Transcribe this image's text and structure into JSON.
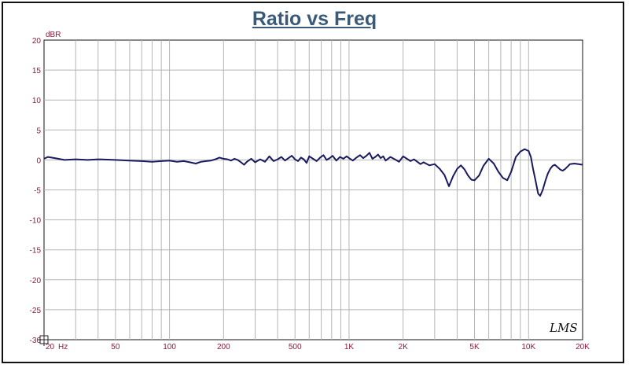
{
  "chart_data": {
    "type": "line",
    "title": "Ratio vs Freq",
    "ylabel": "dBR",
    "x_unit": "Hz",
    "x_scale": "log",
    "xlim": [
      20,
      20000
    ],
    "ylim": [
      -30,
      20
    ],
    "y_ticks": [
      20,
      15,
      10,
      5,
      0,
      -5,
      -10,
      -15,
      -20,
      -25,
      -30
    ],
    "x_tick_labels": [
      {
        "value": 20,
        "label": "20"
      },
      {
        "value": 50,
        "label": "50"
      },
      {
        "value": 100,
        "label": "100"
      },
      {
        "value": 200,
        "label": "200"
      },
      {
        "value": 500,
        "label": "500"
      },
      {
        "value": 1000,
        "label": "1K"
      },
      {
        "value": 2000,
        "label": "2K"
      },
      {
        "value": 5000,
        "label": "5K"
      },
      {
        "value": 10000,
        "label": "10K"
      },
      {
        "value": 20000,
        "label": "20K"
      }
    ],
    "grid": true,
    "watermark": "LMS",
    "colors": {
      "line": "#1a1a5e",
      "grid": "#b5b5b5",
      "tick_text": "#8a1a3a",
      "title": "#3b5a78"
    },
    "series": [
      {
        "x": [
          20,
          21,
          22,
          24,
          26,
          30,
          35,
          40,
          50,
          60,
          70,
          80,
          90,
          100,
          110,
          120,
          130,
          140,
          150,
          160,
          170,
          180,
          190,
          200,
          210,
          220,
          230,
          240,
          250,
          260,
          270,
          285,
          300,
          320,
          340,
          360,
          380,
          400,
          420,
          440,
          460,
          480,
          500,
          520,
          540,
          560,
          580,
          600,
          630,
          660,
          690,
          720,
          750,
          780,
          810,
          850,
          890,
          930,
          970,
          1000,
          1050,
          1100,
          1150,
          1200,
          1250,
          1300,
          1350,
          1400,
          1450,
          1500,
          1550,
          1600,
          1700,
          1800,
          1900,
          2000,
          2100,
          2200,
          2300,
          2400,
          2500,
          2600,
          2800,
          3000,
          3200,
          3400,
          3600,
          3800,
          4000,
          4200,
          4400,
          4600,
          4800,
          5000,
          5300,
          5600,
          6000,
          6400,
          6800,
          7200,
          7600,
          8000,
          8500,
          9000,
          9500,
          10000,
          10300,
          10600,
          11000,
          11300,
          11600,
          12000,
          12400,
          12800,
          13200,
          13600,
          14000,
          14500,
          15000,
          15500,
          16000,
          16500,
          17000,
          18000,
          19000,
          20000
        ],
        "y": [
          0.2,
          0.5,
          0.4,
          0.2,
          0.0,
          0.1,
          0.0,
          0.1,
          0.0,
          -0.1,
          -0.2,
          -0.3,
          -0.2,
          -0.1,
          -0.3,
          -0.2,
          -0.4,
          -0.6,
          -0.3,
          -0.2,
          -0.1,
          0.1,
          0.4,
          0.2,
          0.1,
          -0.1,
          0.2,
          0.0,
          -0.4,
          -0.8,
          -0.3,
          0.2,
          -0.4,
          0.1,
          -0.3,
          0.6,
          -0.2,
          0.1,
          0.5,
          -0.1,
          0.3,
          0.7,
          0.1,
          -0.2,
          0.4,
          0.1,
          -0.5,
          0.6,
          0.2,
          -0.2,
          0.4,
          0.8,
          0.0,
          0.3,
          0.7,
          -0.1,
          0.5,
          0.2,
          0.6,
          0.3,
          -0.1,
          0.4,
          0.8,
          0.3,
          0.7,
          1.2,
          0.2,
          0.5,
          0.9,
          0.3,
          0.6,
          -0.1,
          0.5,
          0.1,
          -0.3,
          0.6,
          0.2,
          -0.2,
          0.1,
          -0.3,
          -0.7,
          -0.4,
          -0.9,
          -0.7,
          -1.5,
          -2.5,
          -4.4,
          -2.7,
          -1.5,
          -0.9,
          -1.6,
          -2.6,
          -3.3,
          -3.4,
          -2.6,
          -1.0,
          0.2,
          -0.6,
          -2.0,
          -3.0,
          -3.4,
          -2.0,
          0.5,
          1.4,
          1.8,
          1.5,
          0.5,
          -1.5,
          -3.8,
          -5.6,
          -6.0,
          -5.0,
          -3.5,
          -2.3,
          -1.5,
          -1.0,
          -0.8,
          -1.2,
          -1.6,
          -1.8,
          -1.5,
          -1.1,
          -0.7,
          -0.6,
          -0.7,
          -0.8
        ]
      }
    ]
  }
}
